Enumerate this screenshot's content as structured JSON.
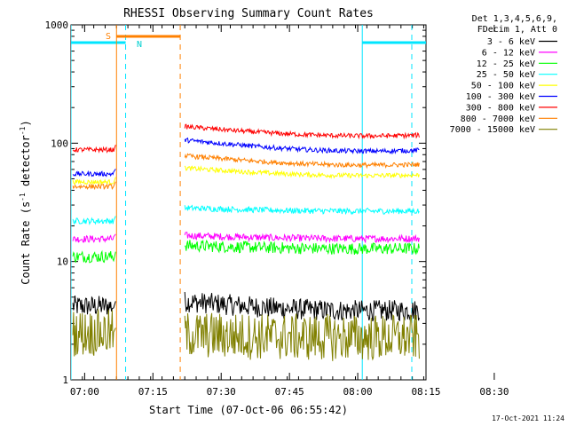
{
  "chart_data": {
    "type": "line",
    "title": "RHESSI Observing Summary Count Rates",
    "xlabel": "Start Time (07-Oct-06 06:55:42)",
    "ylabel_main": "Count Rate (s",
    "ylabel_sup1": "-1",
    "ylabel_mid": " detector",
    "ylabel_sup2": "-1",
    "ylabel_end": ")",
    "yscale": "log",
    "ylim": [
      1,
      1000
    ],
    "xlim_minutes": [
      -1.5,
      37.5
    ],
    "x_ticks": [
      {
        "label": "07:00",
        "minutes": 0
      },
      {
        "label": "07:15",
        "minutes": 7.5
      },
      {
        "label": "07:30",
        "minutes": 15
      },
      {
        "label": "07:45",
        "minutes": 22.5
      },
      {
        "label": "08:00",
        "minutes": 30
      },
      {
        "label": "08:15",
        "minutes": 37.5
      },
      {
        "label": "08:30",
        "minutes": 45
      }
    ],
    "y_ticks": [
      {
        "label": "1",
        "value": 1
      },
      {
        "label": "10",
        "value": 10
      },
      {
        "label": "100",
        "value": 100
      },
      {
        "label": "1000",
        "value": 1000
      }
    ],
    "legend_header": [
      "Det 1,3,4,5,6,9,",
      "FDecim 1, Att 0"
    ],
    "series": [
      {
        "name": "3 - 6 keV",
        "color": "#000000",
        "before": 4.2,
        "after": 4.0,
        "hump": 0.15,
        "noise": 0.09
      },
      {
        "name": "6 - 12 keV",
        "color": "#ff00ff",
        "before": 15.5,
        "after": 15.8,
        "hump": 0.05,
        "noise": 0.03
      },
      {
        "name": "12 - 25 keV",
        "color": "#00ff00",
        "before": 11,
        "after": 13,
        "hump": 0.05,
        "noise": 0.05
      },
      {
        "name": "25 - 50 keV",
        "color": "#00ffff",
        "before": 22,
        "after": 27,
        "hump": 0.05,
        "noise": 0.025
      },
      {
        "name": "50 - 100 keV",
        "color": "#ffff00",
        "before": 47,
        "after": 55,
        "hump": 0.12,
        "noise": 0.02
      },
      {
        "name": "100 - 300 keV",
        "color": "#0000ff",
        "before": 55,
        "after": 90,
        "hump": 0.18,
        "noise": 0.02
      },
      {
        "name": "300 - 800 keV",
        "color": "#ff0000",
        "before": 88,
        "after": 120,
        "hump": 0.15,
        "noise": 0.02
      },
      {
        "name": "800 - 7000 keV",
        "color": "#ff8000",
        "before": 43,
        "after": 68,
        "hump": 0.15,
        "noise": 0.02
      },
      {
        "name": "7000 - 15000 keV",
        "color": "#808000",
        "before": 2.5,
        "after": 2.3,
        "hump": 0.05,
        "noise": 0.2
      }
    ],
    "annotations": {
      "saa_label": "S",
      "night_label": "N",
      "night_before_end_min": 4.5,
      "night_after_start_min": 30.5,
      "saa_start_min": 3.5,
      "saa_end_min": 10.5,
      "data_gap_start_min": 3.5,
      "data_gap_end_min": 11
    },
    "timestamp": "17-Oct-2021 11:24"
  }
}
